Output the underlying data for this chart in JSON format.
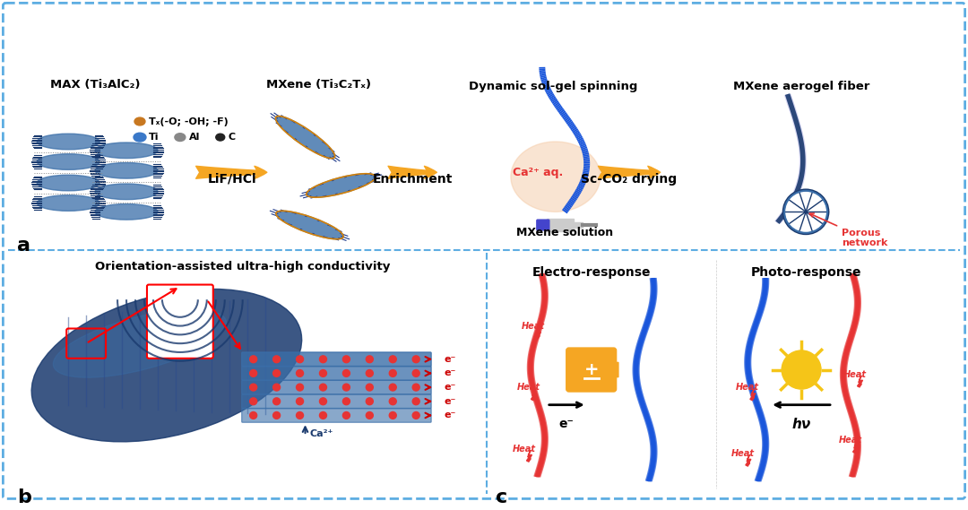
{
  "bg_color": "#ffffff",
  "border_color": "#5DADE2",
  "fig_width": 10.8,
  "fig_height": 5.69,
  "panel_a_label": "a",
  "panel_b_label": "b",
  "panel_c_label": "c",
  "arrow_color": "#F5A623",
  "arrow_color2": "#F5A623",
  "label_max": "MAX (Ti₃AlC₂)",
  "label_mxene": "MXene (Ti₃C₂Tₓ)",
  "label_lif": "LiF/HCl",
  "label_enrich": "Enrichment",
  "label_mxene_sol": "MXene solution",
  "label_sc": "Sc-CO₂ drying",
  "label_ca": "Ca²⁺ aq.",
  "label_dynamic": "Dynamic sol-gel spinning",
  "label_aerogel": "MXene aerogel fiber",
  "label_porous": "Porous\nnetwork",
  "label_orient": "Orientation-assisted ultra-high conductivity",
  "label_electro": "Electro-response",
  "label_photo": "Photo-response",
  "label_heat": "Heat",
  "label_ev": "e⁻",
  "label_hv": "hν",
  "label_ca2": "Ca²⁺",
  "ti_color": "#2E5EA8",
  "al_color": "#888888",
  "c_color": "#111111",
  "tx_color": "#C87820",
  "blue_fiber": "#1A56DB",
  "dark_blue": "#1a3a6e",
  "red_color": "#E63434",
  "mxene_blue": "#2E4A9E",
  "arrow_electron": "#CC0000"
}
